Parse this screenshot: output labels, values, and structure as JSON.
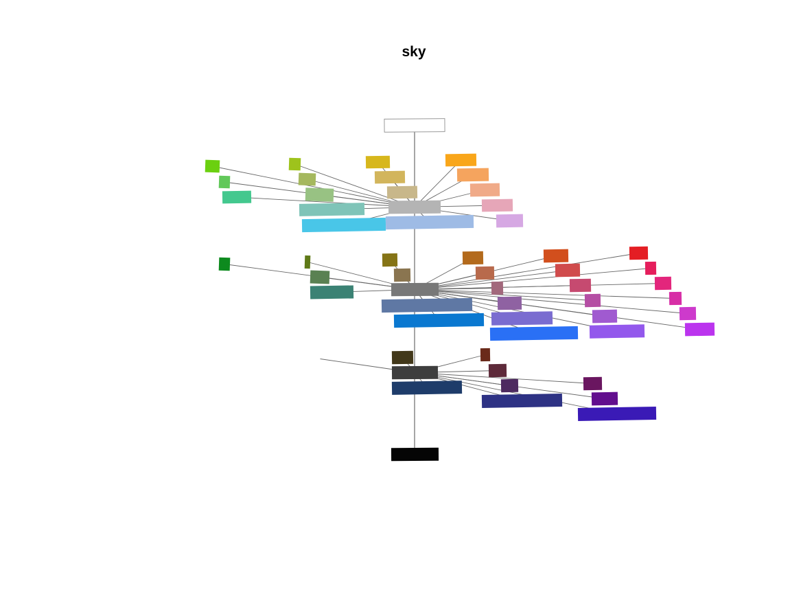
{
  "figure": {
    "title": "sky",
    "trunk_color": "#777777",
    "link_color": "#666666"
  },
  "nodes": [
    {
      "id": "white",
      "color": "#ffffff",
      "stroke": "#999999"
    },
    {
      "id": "grey-top",
      "color": "#b4b4b4"
    },
    {
      "id": "grey-mid",
      "color": "#787878"
    },
    {
      "id": "grey-low",
      "color": "#3e3e3e"
    },
    {
      "id": "black",
      "color": "#050505"
    },
    {
      "id": "t-lime",
      "color": "#6bd010",
      "parent": "grey-top"
    },
    {
      "id": "t-ygreen",
      "color": "#9ec31c",
      "parent": "grey-top"
    },
    {
      "id": "t-mustard",
      "color": "#d7b71c",
      "parent": "grey-top"
    },
    {
      "id": "t-orange",
      "color": "#f9a61a",
      "parent": "grey-top"
    },
    {
      "id": "t-green2",
      "color": "#62c85a",
      "parent": "grey-top"
    },
    {
      "id": "t-olive",
      "color": "#a5b85e",
      "parent": "grey-top"
    },
    {
      "id": "t-sand",
      "color": "#d2b55c",
      "parent": "grey-top"
    },
    {
      "id": "t-peach",
      "color": "#f5a45e",
      "parent": "grey-top"
    },
    {
      "id": "t-sage",
      "color": "#98c283",
      "parent": "grey-top"
    },
    {
      "id": "t-tan",
      "color": "#c8b78a",
      "parent": "grey-top"
    },
    {
      "id": "t-salmon",
      "color": "#f0aa88",
      "parent": "grey-top"
    },
    {
      "id": "t-seafoam",
      "color": "#43c88e",
      "parent": "grey-top"
    },
    {
      "id": "t-teal",
      "color": "#7fc4b8",
      "parent": "grey-top"
    },
    {
      "id": "t-pink",
      "color": "#e6a6b8",
      "parent": "grey-top"
    },
    {
      "id": "t-sky",
      "color": "#49c6e8",
      "parent": "grey-top"
    },
    {
      "id": "t-blue",
      "color": "#9ebbe5",
      "parent": "grey-top"
    },
    {
      "id": "t-lilac",
      "color": "#d6a8e3",
      "parent": "grey-top"
    },
    {
      "id": "m-green",
      "color": "#0d8a1e",
      "parent": "grey-mid"
    },
    {
      "id": "m-olive",
      "color": "#5f7a18",
      "parent": "grey-mid"
    },
    {
      "id": "m-khaki",
      "color": "#857416",
      "parent": "grey-mid"
    },
    {
      "id": "m-brown",
      "color": "#b36a1c",
      "parent": "grey-mid"
    },
    {
      "id": "m-rust",
      "color": "#d24f1d",
      "parent": "grey-mid"
    },
    {
      "id": "m-red",
      "color": "#e41e24",
      "parent": "grey-mid"
    },
    {
      "id": "m-fern",
      "color": "#5a8152",
      "parent": "grey-mid"
    },
    {
      "id": "m-mud",
      "color": "#8a7550",
      "parent": "grey-mid"
    },
    {
      "id": "m-clay",
      "color": "#b86a4c",
      "parent": "grey-mid"
    },
    {
      "id": "m-brick",
      "color": "#d04b4c",
      "parent": "grey-mid"
    },
    {
      "id": "m-crimson",
      "color": "#e51e5c",
      "parent": "grey-mid"
    },
    {
      "id": "m-pine",
      "color": "#3b8274",
      "parent": "grey-mid"
    },
    {
      "id": "m-mauve",
      "color": "#a2687c",
      "parent": "grey-mid"
    },
    {
      "id": "m-rose",
      "color": "#c64a70",
      "parent": "grey-mid"
    },
    {
      "id": "m-magenta",
      "color": "#e3267c",
      "parent": "grey-mid"
    },
    {
      "id": "m-slate",
      "color": "#5f78a4",
      "parent": "grey-mid"
    },
    {
      "id": "m-plum",
      "color": "#8f62a2",
      "parent": "grey-mid"
    },
    {
      "id": "m-orchid",
      "color": "#b54ea4",
      "parent": "grey-mid"
    },
    {
      "id": "m-fuchsia",
      "color": "#d72ea6",
      "parent": "grey-mid"
    },
    {
      "id": "m-azure",
      "color": "#0a78d0",
      "parent": "grey-mid"
    },
    {
      "id": "m-periwink",
      "color": "#7a6cd0",
      "parent": "grey-mid"
    },
    {
      "id": "m-amethyst",
      "color": "#a05ad0",
      "parent": "grey-mid"
    },
    {
      "id": "m-violet",
      "color": "#cd3acc",
      "parent": "grey-mid"
    },
    {
      "id": "m-royal",
      "color": "#2a70f5",
      "parent": "grey-mid"
    },
    {
      "id": "m-lavender",
      "color": "#9358ec",
      "parent": "grey-mid"
    },
    {
      "id": "m-purple",
      "color": "#bb34ee",
      "parent": "grey-mid"
    },
    {
      "id": "l-stub",
      "color": "#ffffff",
      "parent": "grey-low"
    },
    {
      "id": "l-umber",
      "color": "#42381a",
      "parent": "grey-low"
    },
    {
      "id": "l-maroon",
      "color": "#6a2a1a",
      "parent": "grey-low"
    },
    {
      "id": "l-wine",
      "color": "#5e2a3a",
      "parent": "grey-low"
    },
    {
      "id": "l-grape",
      "color": "#6a1660",
      "parent": "grey-low"
    },
    {
      "id": "l-navy",
      "color": "#1e3c6a",
      "parent": "grey-low"
    },
    {
      "id": "l-eggpl",
      "color": "#4e2a60",
      "parent": "grey-low"
    },
    {
      "id": "l-indigo",
      "color": "#620e8e",
      "parent": "grey-low"
    },
    {
      "id": "l-deep",
      "color": "#2e3284",
      "parent": "grey-low"
    },
    {
      "id": "l-ultra",
      "color": "#3a1ab6",
      "parent": "grey-low"
    }
  ]
}
